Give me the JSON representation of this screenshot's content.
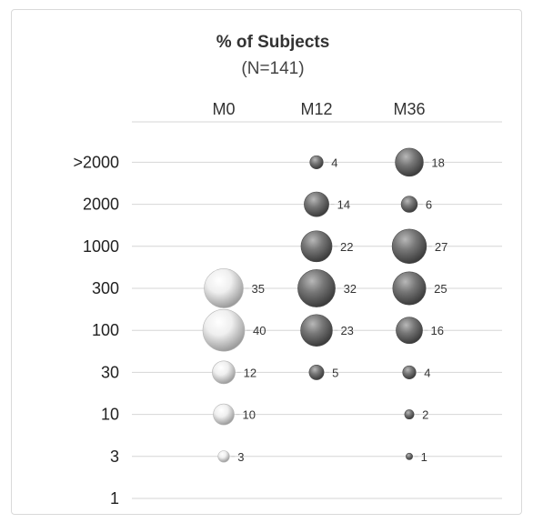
{
  "chart_data": {
    "type": "bubble",
    "title": "% of Subjects",
    "subtitle": "(N=141)",
    "categories": [
      "M0",
      "M12",
      "M36"
    ],
    "y_categories": [
      "1",
      "3",
      "10",
      "30",
      "100",
      "300",
      "1000",
      "2000",
      ">2000"
    ],
    "grid": "horizontal",
    "series": [
      {
        "category": "M0",
        "points": [
          {
            "y": "3",
            "value": 3
          },
          {
            "y": "10",
            "value": 10
          },
          {
            "y": "30",
            "value": 12
          },
          {
            "y": "100",
            "value": 40
          },
          {
            "y": "300",
            "value": 35
          }
        ]
      },
      {
        "category": "M12",
        "points": [
          {
            "y": "30",
            "value": 5
          },
          {
            "y": "100",
            "value": 23
          },
          {
            "y": "300",
            "value": 32
          },
          {
            "y": "1000",
            "value": 22
          },
          {
            "y": "2000",
            "value": 14
          },
          {
            "y": ">2000",
            "value": 4
          }
        ]
      },
      {
        "category": "M36",
        "points": [
          {
            "y": "3",
            "value": 1
          },
          {
            "y": "10",
            "value": 2
          },
          {
            "y": "30",
            "value": 4
          },
          {
            "y": "100",
            "value": 16
          },
          {
            "y": "300",
            "value": 25
          },
          {
            "y": "1000",
            "value": 27
          },
          {
            "y": "2000",
            "value": 6
          },
          {
            "y": ">2000",
            "value": 18
          }
        ]
      }
    ],
    "colors": {
      "M0": "#e4e4e4",
      "M12": "#7d7d7d",
      "M36": "#6f6f6f",
      "M36_label": "#9a9a9a"
    }
  }
}
